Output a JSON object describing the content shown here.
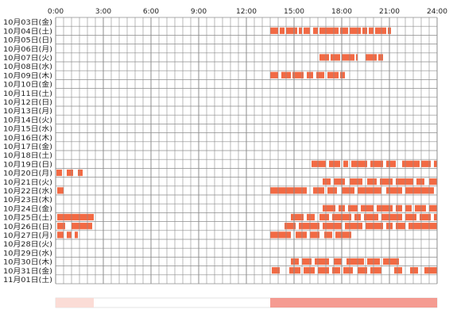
{
  "chart_data": {
    "type": "heatmap",
    "title": "",
    "xlabel": "",
    "ylabel": "",
    "x_ticks": [
      "0:00",
      "3:00",
      "6:00",
      "9:00",
      "12:00",
      "15:00",
      "18:00",
      "21:00",
      "24:00"
    ],
    "x_range_hours": [
      0,
      24
    ],
    "grid": true,
    "colors": {
      "grid": "#8c8c8c",
      "bar": "#f26a44",
      "bar_light": "#f5956f",
      "summary_strong": "#f27a6c",
      "summary_light": "#fbd8d2"
    },
    "rows": [
      {
        "label": "10月03日(金)",
        "intervals": []
      },
      {
        "label": "10月04日(土)",
        "intervals": [
          [
            13.5,
            14.0
          ],
          [
            14.1,
            14.4
          ],
          [
            14.5,
            15.2
          ],
          [
            15.3,
            15.5
          ],
          [
            15.6,
            16.0
          ],
          [
            16.2,
            16.5
          ],
          [
            16.6,
            17.8
          ],
          [
            17.9,
            18.4
          ],
          [
            18.5,
            19.2
          ],
          [
            19.3,
            19.6
          ],
          [
            19.7,
            20.0
          ],
          [
            20.1,
            20.8
          ],
          [
            20.9,
            21.1
          ]
        ]
      },
      {
        "label": "10月05日(日)",
        "intervals": []
      },
      {
        "label": "10月06日(月)",
        "intervals": []
      },
      {
        "label": "10月07日(火)",
        "intervals": [
          [
            16.6,
            17.2
          ],
          [
            17.3,
            17.9
          ],
          [
            18.0,
            18.8
          ],
          [
            18.9,
            19.0
          ],
          [
            19.5,
            20.2
          ],
          [
            20.3,
            20.6
          ]
        ]
      },
      {
        "label": "10月08日(水)",
        "intervals": []
      },
      {
        "label": "10月09日(木)",
        "intervals": [
          [
            13.5,
            14.0
          ],
          [
            14.2,
            14.8
          ],
          [
            14.9,
            15.6
          ],
          [
            15.8,
            16.2
          ],
          [
            16.4,
            16.9
          ],
          [
            17.1,
            17.8
          ],
          [
            17.9,
            18.2
          ]
        ]
      },
      {
        "label": "10月10日(金)",
        "intervals": []
      },
      {
        "label": "10月11日(土)",
        "intervals": []
      },
      {
        "label": "10月12日(日)",
        "intervals": []
      },
      {
        "label": "10月13日(月)",
        "intervals": []
      },
      {
        "label": "10月14日(火)",
        "intervals": []
      },
      {
        "label": "10月15日(水)",
        "intervals": []
      },
      {
        "label": "10月16日(木)",
        "intervals": []
      },
      {
        "label": "10月17日(金)",
        "intervals": []
      },
      {
        "label": "10月18日(土)",
        "intervals": []
      },
      {
        "label": "10月19日(日)",
        "intervals": [
          [
            16.1,
            17.0
          ],
          [
            17.2,
            17.9
          ],
          [
            18.1,
            18.4
          ],
          [
            18.6,
            19.6
          ],
          [
            19.8,
            20.6
          ],
          [
            20.8,
            21.4
          ],
          [
            21.8,
            22.9
          ],
          [
            23.0,
            23.6
          ],
          [
            23.8,
            24.0
          ]
        ]
      },
      {
        "label": "10月20日(月)",
        "intervals": [
          [
            0.05,
            0.4
          ],
          [
            0.7,
            1.1
          ],
          [
            1.4,
            1.7
          ]
        ]
      },
      {
        "label": "10月21日(火)",
        "intervals": [
          [
            16.8,
            17.3
          ],
          [
            17.5,
            18.2
          ],
          [
            18.5,
            19.3
          ],
          [
            19.6,
            20.2
          ],
          [
            20.4,
            21.2
          ],
          [
            21.4,
            22.5
          ],
          [
            22.7,
            23.2
          ],
          [
            23.5,
            24.0
          ]
        ]
      },
      {
        "label": "10月22日(水)",
        "intervals": [
          [
            0.1,
            0.5
          ],
          [
            13.5,
            15.8
          ],
          [
            16.2,
            16.9
          ],
          [
            17.1,
            17.7
          ],
          [
            18.0,
            18.8
          ],
          [
            19.0,
            20.5
          ],
          [
            20.8,
            21.8
          ],
          [
            22.0,
            23.8
          ]
        ]
      },
      {
        "label": "10月23日(木)",
        "intervals": []
      },
      {
        "label": "10月24日(金)",
        "intervals": [
          [
            16.8,
            17.6
          ],
          [
            17.8,
            18.2
          ],
          [
            18.4,
            19.0
          ],
          [
            19.2,
            20.0
          ],
          [
            20.2,
            21.2
          ],
          [
            21.4,
            21.8
          ],
          [
            22.0,
            22.4
          ],
          [
            22.6,
            23.3
          ],
          [
            23.5,
            24.0
          ]
        ]
      },
      {
        "label": "10月25日(土)",
        "intervals": [
          [
            0.1,
            2.4
          ],
          [
            14.8,
            15.6
          ],
          [
            15.8,
            16.3
          ],
          [
            16.6,
            17.2
          ],
          [
            17.4,
            18.6
          ],
          [
            18.8,
            19.2
          ],
          [
            19.4,
            20.3
          ],
          [
            20.5,
            21.8
          ],
          [
            22.0,
            22.7
          ],
          [
            22.9,
            23.6
          ],
          [
            23.8,
            24.0
          ]
        ]
      },
      {
        "label": "10月26日(日)",
        "intervals": [
          [
            0.1,
            0.6
          ],
          [
            1.0,
            2.3
          ],
          [
            14.4,
            15.1
          ],
          [
            15.3,
            16.6
          ],
          [
            16.8,
            18.0
          ],
          [
            18.2,
            19.3
          ],
          [
            19.5,
            20.6
          ],
          [
            20.8,
            21.2
          ],
          [
            21.4,
            22.0
          ],
          [
            22.2,
            24.0
          ]
        ]
      },
      {
        "label": "10月27日(月)",
        "intervals": [
          [
            0.1,
            0.5
          ],
          [
            0.7,
            1.0
          ],
          [
            1.2,
            1.4
          ],
          [
            13.5,
            14.8
          ],
          [
            15.1,
            15.8
          ],
          [
            16.0,
            16.6
          ],
          [
            16.9,
            17.4
          ],
          [
            17.6,
            18.6
          ]
        ]
      },
      {
        "label": "10月28日(火)",
        "intervals": []
      },
      {
        "label": "10月29日(水)",
        "intervals": []
      },
      {
        "label": "10月30日(木)",
        "intervals": [
          [
            14.8,
            15.3
          ],
          [
            15.5,
            16.1
          ],
          [
            16.3,
            17.2
          ],
          [
            17.5,
            18.0
          ],
          [
            18.3,
            19.4
          ],
          [
            19.6,
            20.4
          ],
          [
            20.6,
            21.6
          ]
        ]
      },
      {
        "label": "10月31日(金)",
        "intervals": [
          [
            13.6,
            14.1
          ],
          [
            14.7,
            15.4
          ],
          [
            15.6,
            16.3
          ],
          [
            16.5,
            17.2
          ],
          [
            17.4,
            17.9
          ],
          [
            18.1,
            18.7
          ],
          [
            19.0,
            19.6
          ],
          [
            19.8,
            20.5
          ],
          [
            21.3,
            21.8
          ],
          [
            22.3,
            22.8
          ],
          [
            23.2,
            24.0
          ]
        ]
      },
      {
        "label": "11月01日(土)",
        "intervals": []
      }
    ],
    "summary_bar": {
      "segments": [
        [
          0.0,
          2.4,
          "light"
        ],
        [
          13.5,
          24.0,
          "strong"
        ]
      ]
    }
  }
}
